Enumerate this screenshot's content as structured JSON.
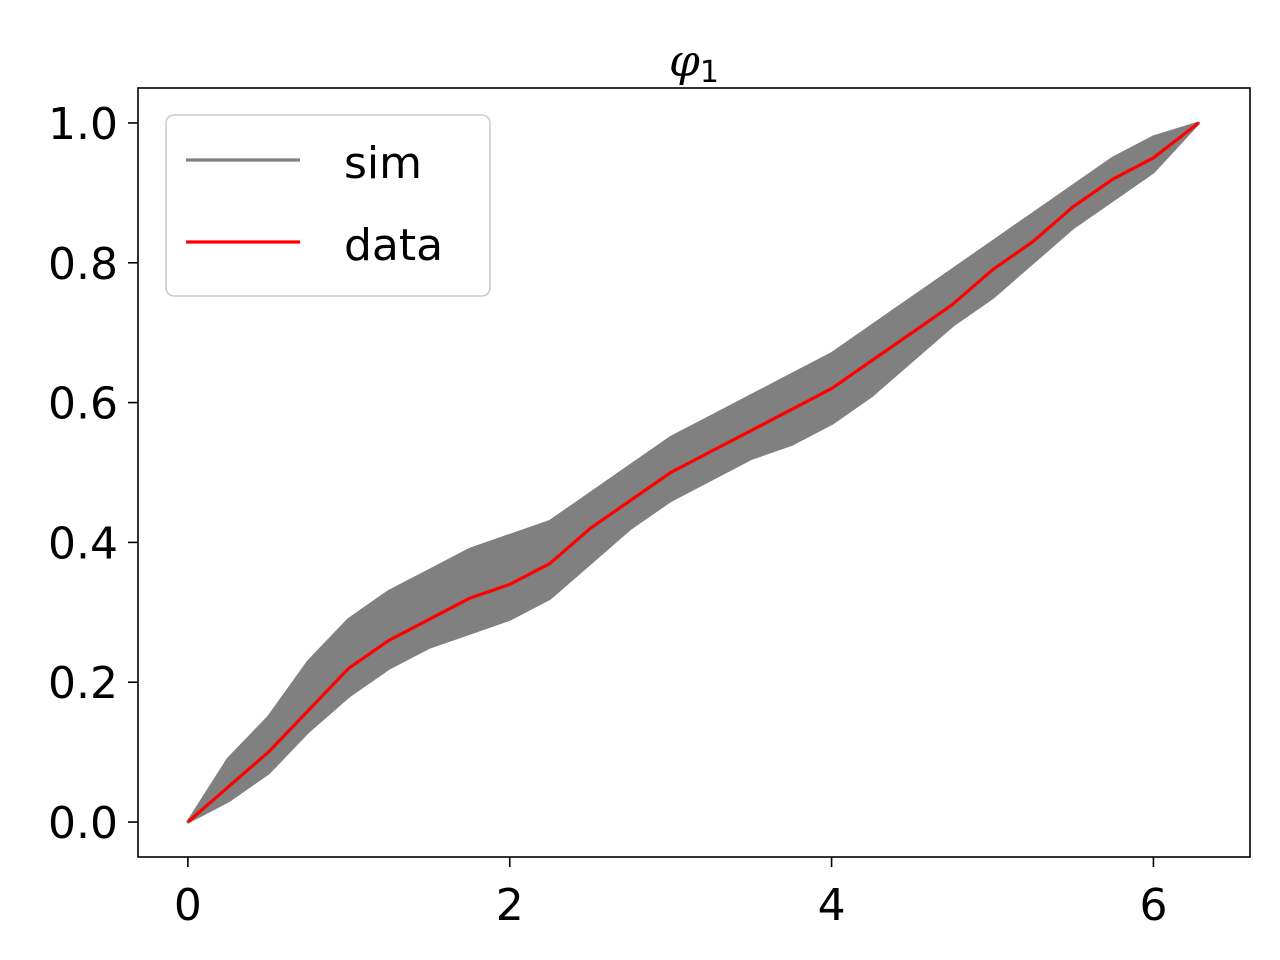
{
  "chart_data": {
    "type": "line",
    "title": "φ",
    "title_subscript": "1",
    "xlabel": "",
    "ylabel": "",
    "xlim": [
      -0.31,
      6.6
    ],
    "ylim": [
      -0.05,
      1.05
    ],
    "xticks": [
      0,
      2,
      4,
      6
    ],
    "xtick_labels": [
      "0",
      "2",
      "4",
      "6"
    ],
    "yticks": [
      0.0,
      0.2,
      0.4,
      0.6,
      0.8,
      1.0
    ],
    "ytick_labels": [
      "0.0",
      "0.2",
      "0.4",
      "0.6",
      "0.8",
      "1.0"
    ],
    "grid": false,
    "legend_position": "top-left",
    "series": [
      {
        "name": "sim",
        "color": "#808080",
        "band_x": [
          0,
          0.25,
          0.5,
          0.75,
          1.0,
          1.25,
          1.5,
          1.75,
          2.0,
          2.25,
          2.5,
          2.75,
          3.0,
          3.25,
          3.5,
          3.75,
          4.0,
          4.25,
          4.5,
          4.75,
          5.0,
          5.25,
          5.5,
          5.75,
          6.0,
          6.28
        ],
        "band_upper": [
          0,
          0.09,
          0.15,
          0.23,
          0.29,
          0.33,
          0.36,
          0.39,
          0.41,
          0.43,
          0.47,
          0.51,
          0.55,
          0.58,
          0.61,
          0.64,
          0.67,
          0.71,
          0.75,
          0.79,
          0.83,
          0.87,
          0.91,
          0.95,
          0.98,
          1.0
        ],
        "band_lower": [
          0,
          0.03,
          0.07,
          0.13,
          0.18,
          0.22,
          0.25,
          0.27,
          0.29,
          0.32,
          0.37,
          0.42,
          0.46,
          0.49,
          0.52,
          0.54,
          0.57,
          0.61,
          0.66,
          0.71,
          0.75,
          0.8,
          0.85,
          0.89,
          0.93,
          1.0
        ]
      },
      {
        "name": "data",
        "color": "#ff0000",
        "x": [
          0,
          0.25,
          0.5,
          0.75,
          1.0,
          1.25,
          1.5,
          1.75,
          2.0,
          2.25,
          2.5,
          2.75,
          3.0,
          3.25,
          3.5,
          3.75,
          4.0,
          4.25,
          4.5,
          4.75,
          5.0,
          5.25,
          5.5,
          5.75,
          6.0,
          6.28
        ],
        "y": [
          0,
          0.05,
          0.1,
          0.16,
          0.22,
          0.26,
          0.29,
          0.32,
          0.34,
          0.37,
          0.42,
          0.46,
          0.5,
          0.53,
          0.56,
          0.59,
          0.62,
          0.66,
          0.7,
          0.74,
          0.79,
          0.83,
          0.88,
          0.92,
          0.95,
          1.0
        ]
      }
    ]
  }
}
